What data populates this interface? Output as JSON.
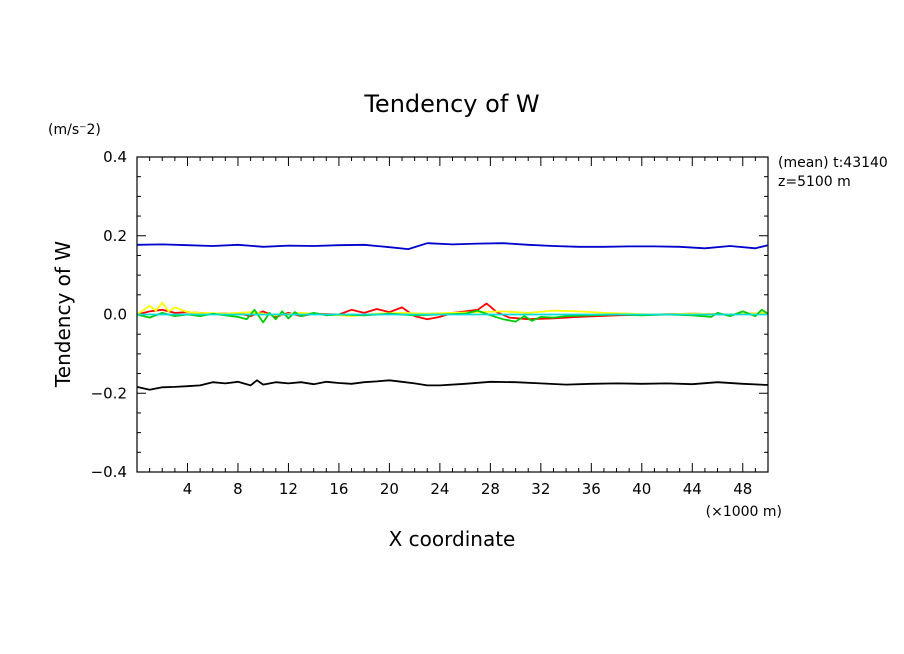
{
  "chart_data": {
    "type": "line",
    "title": "Tendency of W",
    "xlabel": "X coordinate",
    "ylabel": "Tendency of W",
    "x_units": "(×1000 m)",
    "y_units": "(m/s⁻2)",
    "annotation_line1": "(mean) t:43140",
    "annotation_line2": "z=5100 m",
    "xlim": [
      0,
      50
    ],
    "ylim": [
      -0.4,
      0.4
    ],
    "x_ticks": [
      4,
      8,
      12,
      16,
      20,
      24,
      28,
      32,
      36,
      40,
      44,
      48
    ],
    "x_tick_labels": [
      "4",
      "8",
      "12",
      "16",
      "20",
      "24",
      "28",
      "32",
      "36",
      "40",
      "44",
      "48"
    ],
    "y_ticks": [
      -0.4,
      -0.2,
      0.0,
      0.2,
      0.4
    ],
    "y_tick_labels": [
      "−0.4",
      "−0.2",
      "0.0",
      "0.2",
      "0.4"
    ],
    "grid": false,
    "legend": "none",
    "series": [
      {
        "color": "#0000cc",
        "x": [
          0,
          2,
          4,
          6,
          8,
          10,
          12,
          14,
          16,
          18,
          20,
          21.5,
          23,
          25,
          27,
          29,
          31,
          33,
          35,
          37,
          39,
          41,
          43,
          45,
          47,
          49,
          50
        ],
        "y": [
          0.177,
          0.178,
          0.176,
          0.174,
          0.177,
          0.172,
          0.175,
          0.174,
          0.176,
          0.177,
          0.171,
          0.166,
          0.181,
          0.178,
          0.18,
          0.181,
          0.177,
          0.174,
          0.172,
          0.172,
          0.173,
          0.173,
          0.172,
          0.168,
          0.174,
          0.168,
          0.176
        ]
      },
      {
        "color": "#000000",
        "x": [
          0,
          1,
          2,
          3,
          4,
          5,
          6,
          7,
          8,
          9,
          9.5,
          10,
          11,
          12,
          13,
          14,
          15,
          16,
          17,
          18,
          19,
          20,
          21,
          22,
          23,
          24,
          26,
          28,
          30,
          32,
          34,
          36,
          38,
          40,
          42,
          44,
          46,
          48,
          50
        ],
        "y": [
          -0.184,
          -0.191,
          -0.185,
          -0.184,
          -0.182,
          -0.18,
          -0.172,
          -0.175,
          -0.171,
          -0.18,
          -0.167,
          -0.178,
          -0.172,
          -0.175,
          -0.172,
          -0.177,
          -0.171,
          -0.174,
          -0.176,
          -0.172,
          -0.17,
          -0.167,
          -0.171,
          -0.175,
          -0.18,
          -0.18,
          -0.176,
          -0.171,
          -0.172,
          -0.175,
          -0.178,
          -0.176,
          -0.175,
          -0.176,
          -0.175,
          -0.177,
          -0.172,
          -0.176,
          -0.179
        ]
      },
      {
        "color": "#ff0000",
        "x": [
          0,
          1,
          2,
          3,
          4,
          6,
          8,
          9,
          10,
          11,
          12,
          13,
          14,
          16,
          17,
          18,
          19,
          20,
          21,
          22,
          23,
          24,
          25,
          26,
          27,
          27.7,
          28.5,
          29.5,
          31,
          33,
          35,
          38,
          41,
          44,
          47,
          50
        ],
        "y": [
          0.0,
          0.008,
          0.012,
          0.004,
          0.006,
          0.002,
          0.003,
          -0.004,
          0.008,
          -0.006,
          0.004,
          -0.004,
          0.002,
          0.0,
          0.012,
          0.004,
          0.014,
          0.006,
          0.018,
          -0.004,
          -0.012,
          -0.006,
          0.004,
          0.008,
          0.012,
          0.028,
          0.006,
          -0.008,
          -0.012,
          -0.01,
          -0.006,
          -0.002,
          0.0,
          0.002,
          0.0,
          0.004
        ]
      },
      {
        "color": "#ffff00",
        "x": [
          0,
          1,
          1.5,
          2,
          2.5,
          3,
          4,
          5,
          7,
          9,
          11,
          13,
          15,
          17,
          19,
          21,
          23,
          25,
          27,
          29,
          31,
          33,
          35,
          37,
          39,
          41,
          44,
          47,
          50
        ],
        "y": [
          0.0,
          0.022,
          0.01,
          0.03,
          0.008,
          0.018,
          0.006,
          0.004,
          0.002,
          0.006,
          -0.002,
          0.004,
          0.0,
          -0.004,
          0.002,
          0.004,
          0.002,
          0.004,
          0.006,
          0.008,
          0.004,
          0.01,
          0.008,
          0.004,
          0.002,
          0.0,
          0.002,
          0.0,
          0.004
        ]
      },
      {
        "color": "#00cc00",
        "x": [
          0,
          1,
          2,
          3,
          4,
          5,
          6,
          7,
          8,
          8.7,
          9.3,
          10,
          10.5,
          11,
          11.5,
          12,
          12.5,
          13,
          14,
          15,
          16,
          18,
          20,
          22,
          24,
          26,
          27,
          28,
          29,
          30,
          30.7,
          31.3,
          32,
          33,
          34,
          36,
          38,
          40,
          42,
          44,
          45.5,
          46,
          47,
          48,
          49,
          49.5,
          50
        ],
        "y": [
          0.0,
          -0.008,
          0.004,
          -0.004,
          0.0,
          -0.004,
          0.002,
          -0.002,
          -0.006,
          -0.012,
          0.012,
          -0.02,
          0.004,
          -0.012,
          0.008,
          -0.01,
          0.006,
          -0.004,
          0.004,
          -0.002,
          0.0,
          -0.002,
          0.002,
          -0.002,
          0.0,
          0.002,
          0.01,
          -0.002,
          -0.012,
          -0.018,
          -0.004,
          -0.016,
          -0.006,
          -0.008,
          -0.004,
          -0.002,
          0.0,
          -0.002,
          0.0,
          -0.002,
          -0.006,
          0.004,
          -0.004,
          0.008,
          -0.004,
          0.012,
          0.002
        ]
      },
      {
        "color": "#00dddd",
        "x": [
          0,
          5,
          10,
          15,
          20,
          25,
          30,
          35,
          40,
          45,
          50
        ],
        "y": [
          0.0,
          0.0,
          0.0,
          0.0,
          0.0,
          0.0,
          0.0,
          0.0,
          0.0,
          0.0,
          0.0
        ]
      }
    ]
  }
}
